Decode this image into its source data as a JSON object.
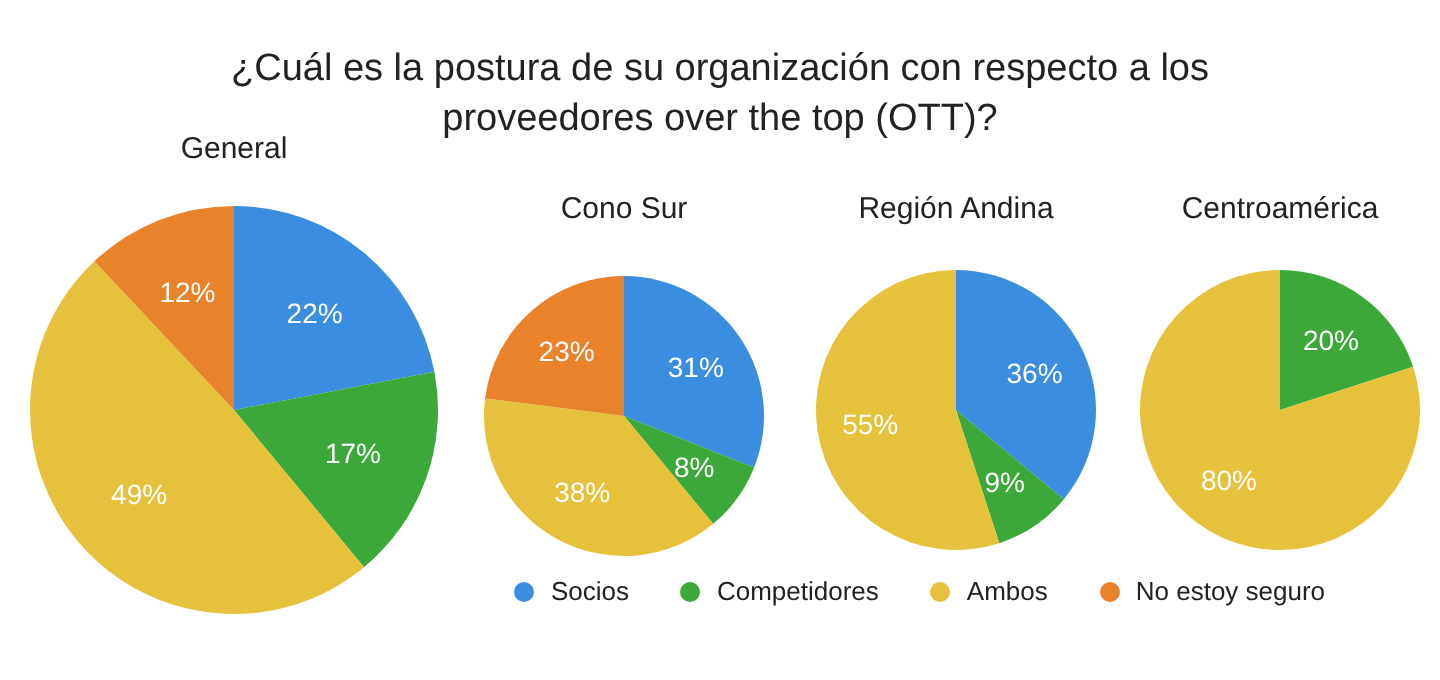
{
  "chart_data": [
    {
      "type": "pie",
      "title": "¿Cuál es la postura de su organización con respecto a los proveedores over the top (OTT)?",
      "subtitle": "General",
      "categories": [
        "Socios",
        "Competidores",
        "Ambos",
        "No estoy seguro"
      ],
      "values": [
        22,
        17,
        49,
        12
      ],
      "colors": [
        "#3b8de0",
        "#3da83a",
        "#e6c23c",
        "#e8832c"
      ],
      "value_labels": [
        "22%",
        "17%",
        "49%",
        "12%"
      ],
      "legend": "bottom"
    },
    {
      "type": "pie",
      "subtitle": "Cono Sur",
      "categories": [
        null,
        null,
        null,
        null
      ],
      "values": [
        31,
        8,
        38,
        23
      ],
      "colors": [
        "#3b8de0",
        "#3da83a",
        "#e6c23c",
        "#e8832c"
      ],
      "value_labels": [
        "31%",
        "8%",
        "38%",
        "23%"
      ]
    },
    {
      "type": "pie",
      "subtitle": "Región Andina",
      "categories": [
        null,
        null,
        null
      ],
      "values": [
        36,
        9,
        55
      ],
      "colors": [
        "#3b8de0",
        "#3da83a",
        "#e6c23c"
      ],
      "value_labels": [
        "36%",
        "9%",
        "55%"
      ]
    },
    {
      "type": "pie",
      "subtitle": "Centroamérica",
      "categories": [
        null,
        null
      ],
      "values": [
        20,
        80
      ],
      "colors": [
        "#3da83a",
        "#e6c23c"
      ],
      "value_labels": [
        "20%",
        "80%"
      ]
    }
  ]
}
